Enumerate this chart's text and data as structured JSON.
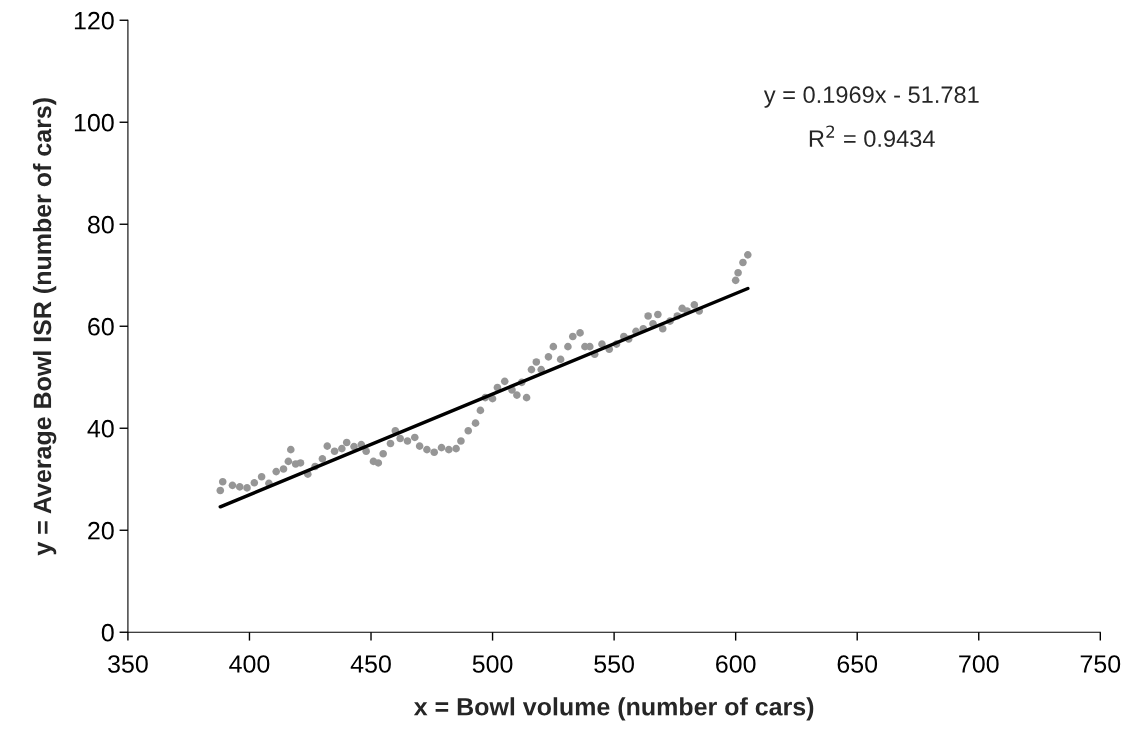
{
  "chart_data": {
    "type": "scatter",
    "xlabel": "x = Bowl volume (number of cars)",
    "ylabel": "y = Average Bowl ISR (number of cars)",
    "xlim": [
      350,
      750
    ],
    "xticks": [
      350,
      400,
      450,
      500,
      550,
      600,
      650,
      700,
      750
    ],
    "ylim": [
      0,
      120
    ],
    "yticks": [
      0,
      20,
      40,
      60,
      80,
      100,
      120
    ],
    "grid": false,
    "annotations": [
      "y = 0.1969x - 51.781",
      "R$^{2}$ = 0.9434"
    ],
    "series": [
      {
        "marker": "circle",
        "color": "#969696",
        "x": [
          388,
          389,
          393,
          396,
          399,
          402,
          405,
          408,
          411,
          414,
          416,
          417,
          419,
          421,
          424,
          427,
          430,
          432,
          435,
          438,
          440,
          443,
          446,
          448,
          451,
          453,
          455,
          458,
          460,
          462,
          465,
          468,
          470,
          473,
          476,
          479,
          482,
          485,
          487,
          490,
          493,
          495,
          497,
          500,
          502,
          505,
          508,
          510,
          512,
          514,
          516,
          518,
          520,
          523,
          525,
          528,
          531,
          533,
          536,
          538,
          540,
          542,
          545,
          548,
          551,
          554,
          556,
          559,
          562,
          564,
          566,
          568,
          570,
          573,
          576,
          578,
          580,
          583,
          585,
          600,
          601,
          603,
          605
        ],
        "values": [
          27.8,
          29.5,
          28.8,
          28.5,
          28.3,
          29.3,
          30.5,
          29.2,
          31.5,
          32,
          33.5,
          35.8,
          33.0,
          33.2,
          31,
          32.5,
          34,
          36.5,
          35.5,
          36,
          37.2,
          36.4,
          36.8,
          35.5,
          33.5,
          33.2,
          35,
          37,
          39.5,
          38,
          37.5,
          38.2,
          36.5,
          35.8,
          35.3,
          36.2,
          35.8,
          36,
          37.5,
          39.5,
          41,
          43.5,
          46,
          45.8,
          48,
          49.2,
          47.5,
          46.5,
          49,
          46,
          51.5,
          53,
          51.5,
          54,
          56,
          53.5,
          56,
          58,
          58.7,
          56,
          56,
          54.5,
          56.5,
          55.5,
          56.5,
          58,
          57.5,
          59,
          59.5,
          62,
          60.5,
          62.3,
          59.5,
          61,
          62,
          63.5,
          63,
          64.2,
          63,
          69,
          70.5,
          72.5,
          74
        ]
      },
      {
        "type": "line",
        "marker": "none",
        "color": "#000000",
        "x": [
          388,
          605
        ],
        "values": [
          24.6,
          67.4
        ]
      }
    ]
  }
}
